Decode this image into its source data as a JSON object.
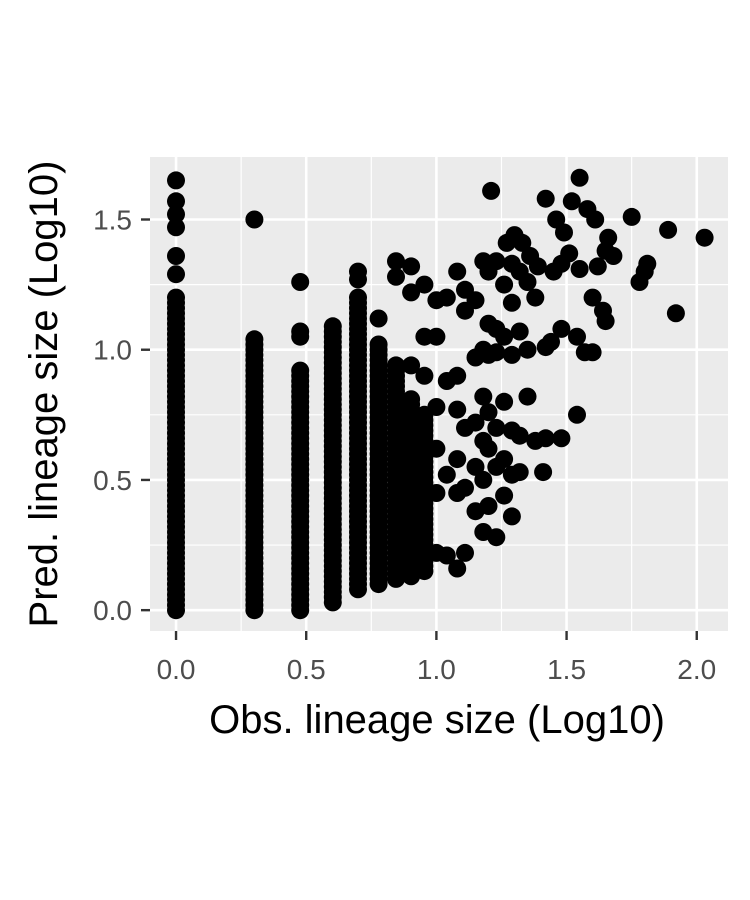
{
  "chart_data": {
    "type": "scatter",
    "title": "",
    "xlabel": "Obs. lineage size (Log10)",
    "ylabel": "Pred. lineage size (Log10)",
    "xlim": [
      -0.1,
      2.12
    ],
    "ylim": [
      -0.08,
      1.74
    ],
    "x_ticks": [
      0.0,
      0.5,
      1.0,
      1.5,
      2.0
    ],
    "x_tick_labels": [
      "0.0",
      "0.5",
      "1.0",
      "1.5",
      "2.0"
    ],
    "y_ticks": [
      0.0,
      0.5,
      1.0,
      1.5
    ],
    "y_tick_labels": [
      "0.0",
      "0.5",
      "1.0",
      "1.5"
    ],
    "grid": true,
    "colors": {
      "panel": "#ebebeb",
      "grid": "#ffffff",
      "point": "#000000"
    },
    "columns": [
      {
        "x": 0.0,
        "y_min": 0.0,
        "y_max": 1.2,
        "extra_y": [
          1.29,
          1.36,
          1.47,
          1.52,
          1.57,
          1.65
        ]
      },
      {
        "x": 0.301,
        "y_min": 0.0,
        "y_max": 1.05,
        "extra_y": [
          1.5
        ]
      },
      {
        "x": 0.477,
        "y_min": 0.0,
        "y_max": 0.93,
        "extra_y": [
          1.05,
          1.07,
          1.26
        ]
      },
      {
        "x": 0.602,
        "y_min": 0.03,
        "y_max": 1.1,
        "extra_y": []
      },
      {
        "x": 0.699,
        "y_min": 0.08,
        "y_max": 1.2,
        "extra_y": [
          1.27,
          1.3
        ]
      },
      {
        "x": 0.778,
        "y_min": 0.1,
        "y_max": 1.03,
        "extra_y": [
          1.12
        ]
      },
      {
        "x": 0.845,
        "y_min": 0.12,
        "y_max": 0.95,
        "extra_y": [
          1.28,
          1.34
        ]
      },
      {
        "x": 0.903,
        "y_min": 0.13,
        "y_max": 0.82,
        "extra_y": [
          0.94,
          1.22,
          1.32
        ]
      },
      {
        "x": 0.954,
        "y_min": 0.15,
        "y_max": 0.75,
        "extra_y": [
          0.9,
          1.05,
          1.25
        ]
      }
    ],
    "points": [
      [
        1.0,
        0.22
      ],
      [
        1.0,
        0.45
      ],
      [
        1.0,
        0.62
      ],
      [
        1.0,
        0.78
      ],
      [
        1.0,
        1.05
      ],
      [
        1.0,
        1.19
      ],
      [
        1.04,
        0.21
      ],
      [
        1.04,
        0.52
      ],
      [
        1.04,
        0.88
      ],
      [
        1.04,
        1.2
      ],
      [
        1.08,
        0.16
      ],
      [
        1.08,
        0.45
      ],
      [
        1.08,
        0.58
      ],
      [
        1.08,
        0.77
      ],
      [
        1.08,
        0.9
      ],
      [
        1.08,
        1.3
      ],
      [
        1.11,
        0.22
      ],
      [
        1.11,
        0.47
      ],
      [
        1.11,
        0.7
      ],
      [
        1.11,
        1.15
      ],
      [
        1.11,
        1.23
      ],
      [
        1.15,
        0.38
      ],
      [
        1.15,
        0.55
      ],
      [
        1.15,
        0.72
      ],
      [
        1.15,
        0.97
      ],
      [
        1.15,
        1.19
      ],
      [
        1.18,
        0.3
      ],
      [
        1.18,
        0.5
      ],
      [
        1.18,
        0.65
      ],
      [
        1.18,
        0.82
      ],
      [
        1.18,
        1.0
      ],
      [
        1.18,
        1.34
      ],
      [
        1.2,
        0.4
      ],
      [
        1.2,
        0.62
      ],
      [
        1.2,
        0.76
      ],
      [
        1.2,
        0.98
      ],
      [
        1.2,
        1.1
      ],
      [
        1.2,
        1.3
      ],
      [
        1.21,
        1.61
      ],
      [
        1.23,
        0.28
      ],
      [
        1.23,
        0.55
      ],
      [
        1.23,
        0.7
      ],
      [
        1.23,
        0.99
      ],
      [
        1.23,
        1.08
      ],
      [
        1.23,
        1.34
      ],
      [
        1.26,
        0.44
      ],
      [
        1.26,
        0.58
      ],
      [
        1.26,
        0.8
      ],
      [
        1.26,
        1.05
      ],
      [
        1.26,
        1.25
      ],
      [
        1.27,
        1.41
      ],
      [
        1.29,
        0.36
      ],
      [
        1.29,
        0.52
      ],
      [
        1.29,
        0.69
      ],
      [
        1.29,
        0.98
      ],
      [
        1.29,
        1.18
      ],
      [
        1.29,
        1.33
      ],
      [
        1.3,
        1.44
      ],
      [
        1.32,
        0.53
      ],
      [
        1.32,
        0.67
      ],
      [
        1.32,
        1.07
      ],
      [
        1.32,
        1.3
      ],
      [
        1.33,
        1.41
      ],
      [
        1.35,
        0.82
      ],
      [
        1.35,
        1.0
      ],
      [
        1.35,
        1.26
      ],
      [
        1.36,
        1.36
      ],
      [
        1.38,
        0.65
      ],
      [
        1.38,
        1.2
      ],
      [
        1.39,
        1.32
      ],
      [
        1.41,
        0.53
      ],
      [
        1.42,
        0.66
      ],
      [
        1.42,
        1.01
      ],
      [
        1.42,
        1.58
      ],
      [
        1.44,
        1.03
      ],
      [
        1.45,
        1.3
      ],
      [
        1.46,
        1.5
      ],
      [
        1.48,
        0.66
      ],
      [
        1.48,
        1.08
      ],
      [
        1.48,
        1.33
      ],
      [
        1.49,
        1.45
      ],
      [
        1.51,
        1.37
      ],
      [
        1.52,
        1.57
      ],
      [
        1.54,
        0.75
      ],
      [
        1.54,
        1.05
      ],
      [
        1.55,
        1.31
      ],
      [
        1.55,
        1.66
      ],
      [
        1.57,
        0.99
      ],
      [
        1.58,
        1.54
      ],
      [
        1.6,
        0.99
      ],
      [
        1.6,
        1.2
      ],
      [
        1.61,
        1.5
      ],
      [
        1.62,
        1.32
      ],
      [
        1.64,
        1.15
      ],
      [
        1.65,
        1.11
      ],
      [
        1.65,
        1.38
      ],
      [
        1.66,
        1.43
      ],
      [
        1.68,
        1.36
      ],
      [
        1.75,
        1.51
      ],
      [
        1.78,
        1.26
      ],
      [
        1.8,
        1.3
      ],
      [
        1.81,
        1.33
      ],
      [
        1.89,
        1.46
      ],
      [
        1.92,
        1.14
      ],
      [
        2.03,
        1.43
      ]
    ]
  }
}
